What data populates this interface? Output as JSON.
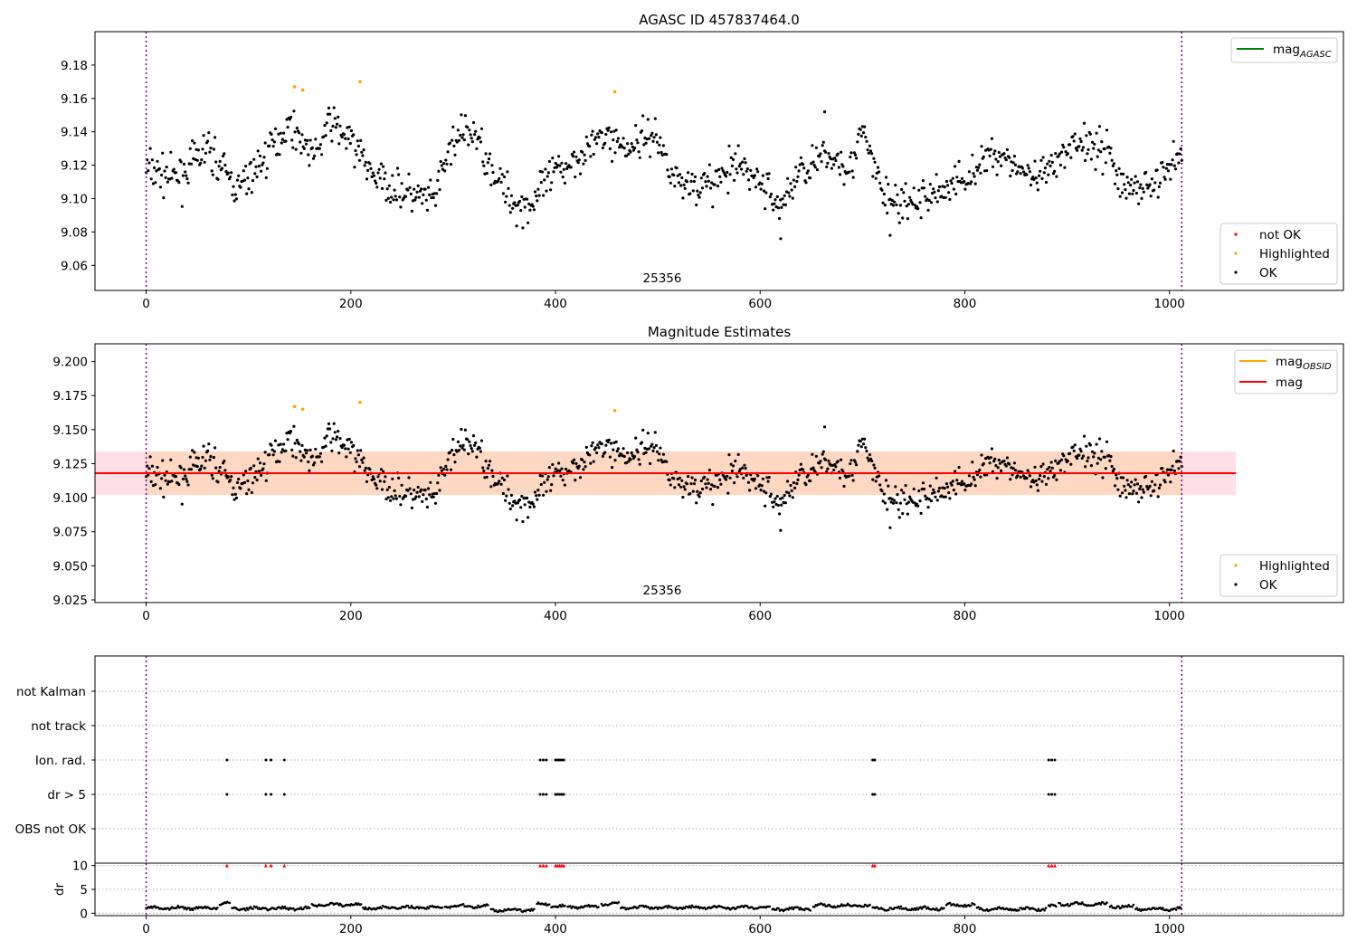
{
  "chart_data": [
    {
      "type": "scatter",
      "title": "AGASC ID 457837464.0",
      "xlim": [
        -50,
        1170
      ],
      "ylim": [
        9.045,
        9.2
      ],
      "x_ticks": [
        0,
        200,
        400,
        600,
        800,
        1000
      ],
      "y_ticks": [
        9.06,
        9.08,
        9.1,
        9.12,
        9.14,
        9.16,
        9.18
      ],
      "y_tick_labels": [
        "9.06",
        "9.08",
        "9.10",
        "9.12",
        "9.14",
        "9.16",
        "9.18"
      ],
      "obsid_label": {
        "text": "25356",
        "x": 505
      },
      "vlines": [
        0,
        1012
      ],
      "legend_upper": {
        "position": "upper right",
        "entries": [
          {
            "label": "mag",
            "sub": "AGASC",
            "color": "#008000"
          }
        ]
      },
      "legend_lower": {
        "position": "lower right",
        "entries": [
          {
            "label": "not OK",
            "color": "#ff0000"
          },
          {
            "label": "Highlighted",
            "color": "#ffa500"
          },
          {
            "label": "OK",
            "color": "#000000"
          }
        ]
      },
      "series": [
        {
          "name": "OK",
          "color": "#000000",
          "n": 1010,
          "x_range": [
            0,
            1012
          ],
          "trend": [
            [
              0,
              9.118
            ],
            [
              30,
              9.112
            ],
            [
              60,
              9.13
            ],
            [
              90,
              9.105
            ],
            [
              110,
              9.12
            ],
            [
              140,
              9.145
            ],
            [
              165,
              9.125
            ],
            [
              180,
              9.147
            ],
            [
              205,
              9.13
            ],
            [
              225,
              9.112
            ],
            [
              255,
              9.103
            ],
            [
              280,
              9.098
            ],
            [
              300,
              9.135
            ],
            [
              320,
              9.14
            ],
            [
              345,
              9.11
            ],
            [
              360,
              9.097
            ],
            [
              375,
              9.096
            ],
            [
              395,
              9.112
            ],
            [
              420,
              9.125
            ],
            [
              450,
              9.138
            ],
            [
              470,
              9.13
            ],
            [
              495,
              9.14
            ],
            [
              520,
              9.11
            ],
            [
              550,
              9.108
            ],
            [
              580,
              9.12
            ],
            [
              600,
              9.11
            ],
            [
              620,
              9.095
            ],
            [
              640,
              9.118
            ],
            [
              670,
              9.125
            ],
            [
              690,
              9.12
            ],
            [
              700,
              9.14
            ],
            [
              720,
              9.103
            ],
            [
              740,
              9.095
            ],
            [
              770,
              9.103
            ],
            [
              800,
              9.112
            ],
            [
              830,
              9.128
            ],
            [
              850,
              9.12
            ],
            [
              870,
              9.11
            ],
            [
              890,
              9.12
            ],
            [
              910,
              9.135
            ],
            [
              940,
              9.13
            ],
            [
              955,
              9.105
            ],
            [
              990,
              9.11
            ],
            [
              1012,
              9.13
            ]
          ]
        },
        {
          "name": "Highlighted",
          "color": "#ffa500",
          "points": [
            [
              145,
              9.167
            ],
            [
              153,
              9.165
            ],
            [
              209,
              9.17
            ],
            [
              458,
              9.164
            ]
          ]
        }
      ]
    },
    {
      "type": "scatter",
      "title": "Magnitude Estimates",
      "xlim": [
        -50,
        1170
      ],
      "ylim": [
        9.023,
        9.213
      ],
      "x_ticks": [
        0,
        200,
        400,
        600,
        800,
        1000
      ],
      "y_ticks": [
        9.025,
        9.05,
        9.075,
        9.1,
        9.125,
        9.15,
        9.175,
        9.2
      ],
      "y_tick_labels": [
        "9.025",
        "9.050",
        "9.075",
        "9.100",
        "9.125",
        "9.150",
        "9.175",
        "9.200"
      ],
      "obsid_label": {
        "text": "25356",
        "x": 505
      },
      "vlines": [
        0,
        1012
      ],
      "mag_line": {
        "value": 9.118,
        "color": "#ff0000",
        "x_range": [
          -50,
          1065
        ]
      },
      "band_mag": {
        "low": 9.102,
        "high": 9.134,
        "color": "#ffe0e6",
        "x_range": [
          -50,
          1065
        ]
      },
      "band_obsid": {
        "low": 9.102,
        "high": 9.134,
        "color": "#ffd8c4",
        "x_range": [
          0,
          1012
        ]
      },
      "legend_upper": {
        "position": "upper right",
        "entries": [
          {
            "label": "mag",
            "sub": "OBSID",
            "color": "#ffa500"
          },
          {
            "label": "mag",
            "sub": "",
            "color": "#ff0000"
          }
        ]
      },
      "legend_lower": {
        "position": "lower right",
        "entries": [
          {
            "label": "Highlighted",
            "color": "#ffa500"
          },
          {
            "label": "OK",
            "color": "#000000"
          }
        ]
      }
    },
    {
      "type": "scatter",
      "title": "",
      "xlim": [
        -50,
        1170
      ],
      "categories": [
        "not Kalman",
        "not track",
        "Ion. rad.",
        "dr > 5",
        "OBS not OK"
      ],
      "flagged": {
        "not Kalman": [],
        "not track": [],
        "Ion. rad.": [
          79,
          117,
          122,
          135,
          385,
          388,
          391,
          400,
          402,
          404,
          406,
          408,
          710,
          712,
          882,
          885,
          888
        ],
        "dr > 5": [
          79,
          117,
          122,
          135,
          385,
          388,
          391,
          400,
          402,
          404,
          406,
          408,
          710,
          712,
          882,
          885,
          888
        ],
        "OBS not OK": []
      },
      "vlines": [
        0,
        1012
      ]
    },
    {
      "type": "scatter",
      "title": "",
      "ylabel": "dr",
      "xlim": [
        -50,
        1170
      ],
      "ylim": [
        -0.5,
        10.5
      ],
      "y_ticks": [
        0,
        5,
        10
      ],
      "y_tick_labels": [
        "0",
        "5",
        "10"
      ],
      "x_ticks": [
        0,
        200,
        400,
        600,
        800,
        1000
      ],
      "vlines": [
        0,
        1012
      ],
      "clipped_marker": {
        "value": 10,
        "color": "#ff0000",
        "x": [
          79,
          117,
          122,
          135,
          385,
          388,
          391,
          400,
          402,
          404,
          406,
          408,
          710,
          712,
          882,
          885,
          888
        ]
      },
      "segments": [
        [
          0,
          70,
          1.1
        ],
        [
          72,
          82,
          2.0
        ],
        [
          84,
          160,
          1.0
        ],
        [
          162,
          210,
          1.8
        ],
        [
          212,
          232,
          1.1
        ],
        [
          233,
          290,
          1.2
        ],
        [
          292,
          335,
          1.5
        ],
        [
          337,
          380,
          0.7
        ],
        [
          382,
          395,
          2.0
        ],
        [
          396,
          410,
          1.4
        ],
        [
          412,
          443,
          1.3
        ],
        [
          445,
          462,
          2.0
        ],
        [
          464,
          610,
          1.2
        ],
        [
          612,
          650,
          0.9
        ],
        [
          652,
          708,
          1.6
        ],
        [
          710,
          780,
          1.0
        ],
        [
          782,
          810,
          1.7
        ],
        [
          812,
          880,
          0.9
        ],
        [
          882,
          890,
          1.5
        ],
        [
          892,
          940,
          1.9
        ],
        [
          942,
          965,
          1.4
        ],
        [
          967,
          1012,
          0.9
        ]
      ]
    }
  ]
}
